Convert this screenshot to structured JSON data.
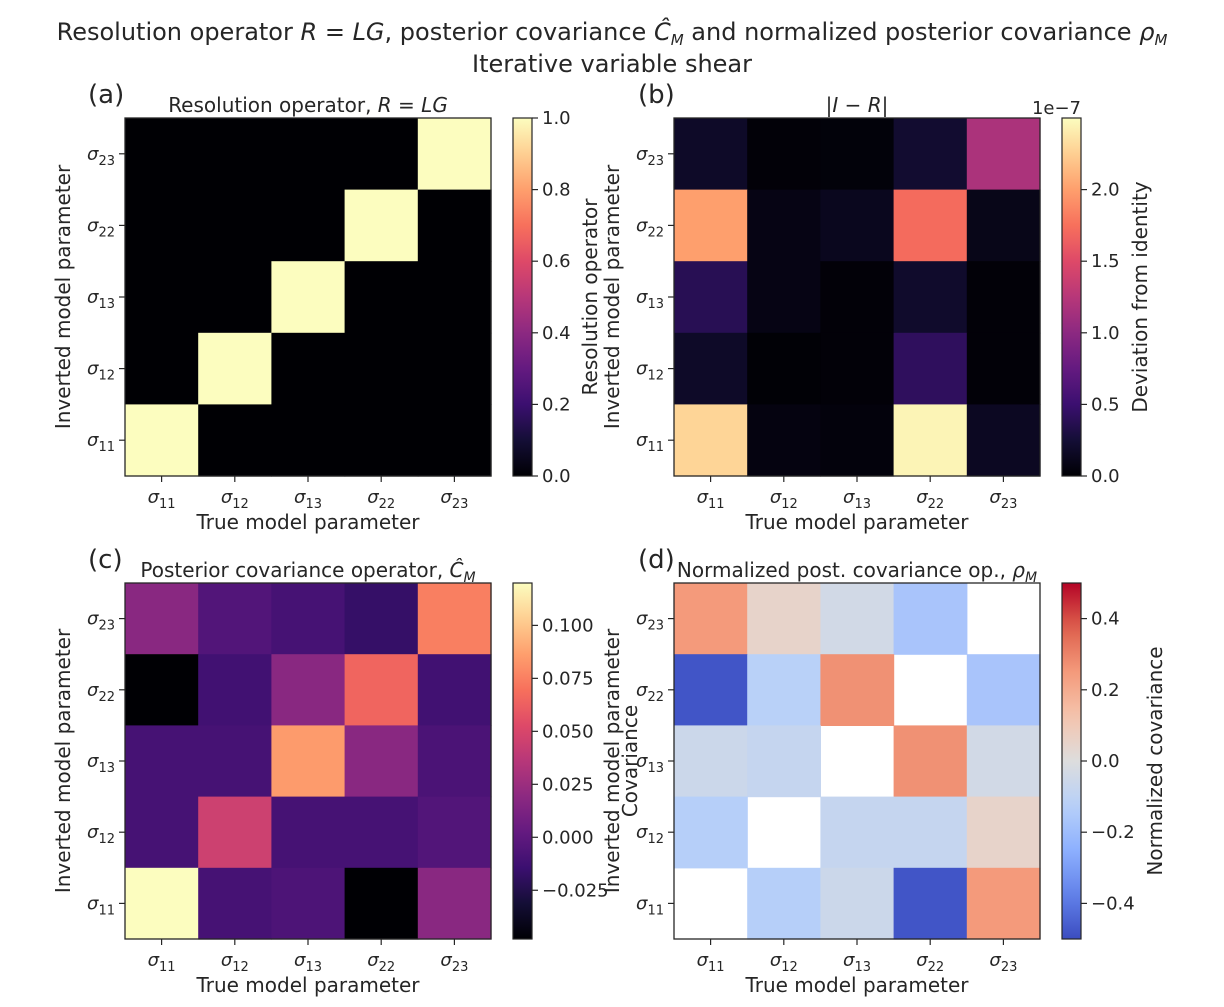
{
  "figure": {
    "suptitle_line1": "Resolution operator R = LG, posterior covariance Ĉ_M and normalized posterior covariance ρ_M",
    "suptitle_line2": "Iterative variable shear"
  },
  "chart_data": [
    {
      "type": "heatmap",
      "panel": "(a)",
      "title": "Resolution operator, R = LG",
      "xlabel": "True model parameter",
      "ylabel": "Inverted model parameter",
      "categories": [
        "σ11",
        "σ12",
        "σ13",
        "σ22",
        "σ23"
      ],
      "row_order": "top-to-bottom: σ23, σ22, σ13, σ12, σ11",
      "colormap": "magma",
      "vmin": 0.0,
      "vmax": 1.0,
      "values": [
        [
          0,
          0,
          0,
          0,
          1
        ],
        [
          0,
          0,
          0,
          1,
          0
        ],
        [
          0,
          0,
          1,
          0,
          0
        ],
        [
          0,
          1,
          0,
          0,
          0
        ],
        [
          1,
          0,
          0,
          0,
          0
        ]
      ],
      "colorbar": {
        "label": "Resolution operator",
        "ticks": [
          "0.0",
          "0.2",
          "0.4",
          "0.6",
          "0.8",
          "1.0"
        ],
        "offset": ""
      }
    },
    {
      "type": "heatmap",
      "panel": "(b)",
      "title": "|I − R|",
      "xlabel": "True model parameter",
      "ylabel": "Inverted model parameter",
      "categories": [
        "σ11",
        "σ12",
        "σ13",
        "σ22",
        "σ23"
      ],
      "row_order": "top-to-bottom: σ23, σ22, σ13, σ12, σ11",
      "colormap": "magma",
      "vmin": 0.0,
      "vmax": 2.5,
      "values": [
        [
          0.18,
          0.02,
          0.03,
          0.22,
          1.18
        ],
        [
          2.0,
          0.08,
          0.13,
          1.72,
          0.1
        ],
        [
          0.38,
          0.08,
          0.02,
          0.2,
          0.02
        ],
        [
          0.18,
          0.01,
          0.02,
          0.42,
          0.02
        ],
        [
          2.28,
          0.06,
          0.04,
          2.45,
          0.15
        ]
      ],
      "colorbar": {
        "label": "Deviation from identity",
        "ticks": [
          "0.0",
          "0.5",
          "1.0",
          "1.5",
          "2.0"
        ],
        "offset": "1e−7"
      }
    },
    {
      "type": "heatmap",
      "panel": "(c)",
      "title": "Posterior covariance operator, Ĉ_M",
      "xlabel": "True model parameter",
      "ylabel": "Inverted model parameter",
      "categories": [
        "σ11",
        "σ12",
        "σ13",
        "σ22",
        "σ23"
      ],
      "row_order": "top-to-bottom: σ23, σ22, σ13, σ12, σ11",
      "colormap": "magma",
      "vmin": -0.048,
      "vmax": 0.12,
      "values": [
        [
          0.018,
          -0.005,
          -0.01,
          -0.017,
          0.075
        ],
        [
          -0.048,
          -0.012,
          0.018,
          0.065,
          -0.012
        ],
        [
          -0.01,
          -0.01,
          0.085,
          0.018,
          -0.008
        ],
        [
          -0.01,
          0.045,
          -0.01,
          -0.01,
          -0.005
        ],
        [
          0.12,
          -0.01,
          -0.007,
          -0.048,
          0.018
        ]
      ],
      "colorbar": {
        "label": "Covariance",
        "ticks": [
          "−0.025",
          "0.000",
          "0.025",
          "0.050",
          "0.075",
          "0.100"
        ],
        "offset": ""
      }
    },
    {
      "type": "heatmap",
      "panel": "(d)",
      "title": "Normalized post. covariance op., ρ_M",
      "xlabel": "True model parameter",
      "ylabel": "Inverted model parameter",
      "categories": [
        "σ11",
        "σ12",
        "σ13",
        "σ22",
        "σ23"
      ],
      "row_order": "top-to-bottom: σ23, σ22, σ13, σ12, σ11",
      "colormap": "coolwarm",
      "vmin": -0.5,
      "vmax": 0.5,
      "diagonal_masked": true,
      "values": [
        [
          0.25,
          0.05,
          -0.04,
          -0.17,
          null
        ],
        [
          -0.48,
          -0.12,
          0.27,
          null,
          -0.17
        ],
        [
          -0.06,
          -0.08,
          null,
          0.27,
          -0.04
        ],
        [
          -0.13,
          null,
          -0.08,
          -0.08,
          0.05
        ],
        [
          null,
          -0.13,
          -0.06,
          -0.48,
          0.25
        ]
      ],
      "colorbar": {
        "label": "Normalized covariance",
        "ticks": [
          "−0.4",
          "−0.2",
          "0.0",
          "0.2",
          "0.4"
        ],
        "offset": ""
      }
    }
  ]
}
